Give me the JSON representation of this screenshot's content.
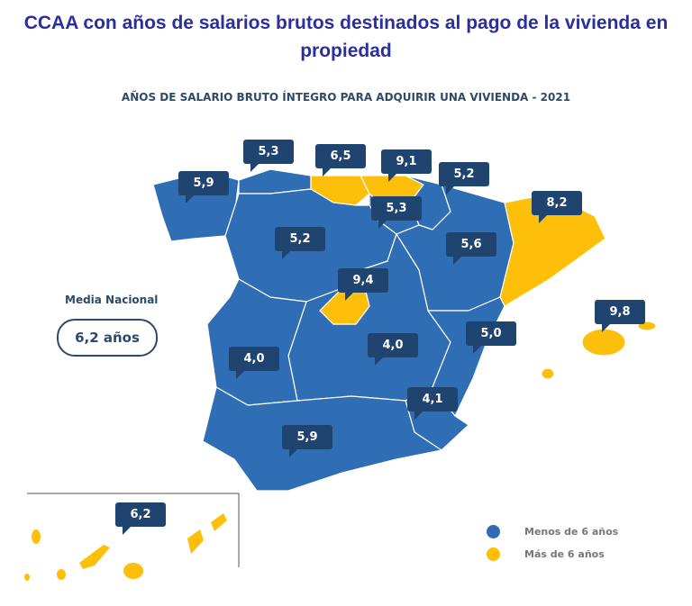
{
  "title": "CCAA con años de salarios brutos destinados al pago de la vivienda en propiedad",
  "subtitle": "AÑOS DE SALARIO BRUTO ÍNTEGRO PARA ADQUIRIR UNA VIVIENDA - 2021",
  "media": {
    "label": "Media Nacional",
    "value": "6,2 años"
  },
  "colors": {
    "below": "#2f6db5",
    "above": "#fdbf0a",
    "label_bg": "#1f4470"
  },
  "legend": [
    {
      "label": "Menos de 6 años",
      "color": "#2f6db5"
    },
    {
      "label": "Más de 6 años",
      "color": "#fdbf0a"
    }
  ],
  "values": {
    "galicia": "5,9",
    "asturias": "5,3",
    "cantabria": "6,5",
    "pais_vasco": "9,1",
    "navarra": "5,2",
    "rioja": "5,3",
    "aragon": "5,6",
    "cataluna": "8,2",
    "castilla_leon": "5,2",
    "madrid": "9,4",
    "castilla_mancha": "4,0",
    "extremadura": "4,0",
    "valencia": "5,0",
    "murcia": "4,1",
    "andalucia": "5,9",
    "baleares": "9,8",
    "canarias": "6,2"
  }
}
